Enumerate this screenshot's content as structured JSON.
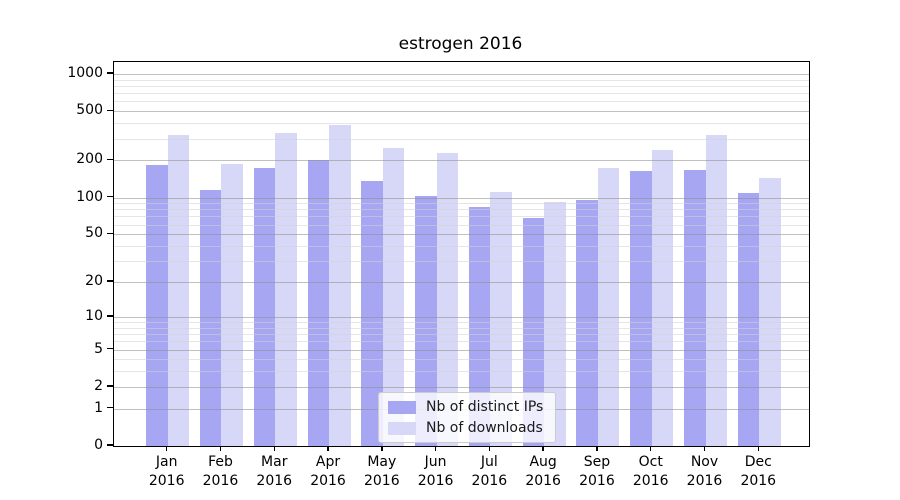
{
  "title": "estrogen 2016",
  "chart_data": {
    "type": "bar",
    "title": "estrogen 2016",
    "categories": [
      "Jan 2016",
      "Feb 2016",
      "Mar 2016",
      "Apr 2016",
      "May 2016",
      "Jun 2016",
      "Jul 2016",
      "Aug 2016",
      "Sep 2016",
      "Oct 2016",
      "Nov 2016",
      "Dec 2016"
    ],
    "month_labels": [
      "Jan",
      "Feb",
      "Mar",
      "Apr",
      "May",
      "Jun",
      "Jul",
      "Aug",
      "Sep",
      "Oct",
      "Nov",
      "Dec"
    ],
    "year_label": "2016",
    "series": [
      {
        "name": "Nb of distinct IPs",
        "color": "#a6a6f2",
        "values": [
          184,
          116,
          174,
          200,
          136,
          102,
          84,
          68,
          95,
          165,
          166,
          109
        ]
      },
      {
        "name": "Nb of downloads",
        "color": "#d7d7f7",
        "values": [
          320,
          188,
          335,
          385,
          252,
          230,
          110,
          92,
          174,
          245,
          322,
          143
        ]
      }
    ],
    "yscale": "log1p",
    "ylim": [
      0,
      1250
    ],
    "major_yticks": [
      0,
      1,
      2,
      5,
      10,
      20,
      50,
      100,
      200,
      500,
      1000
    ],
    "minor_yticks": [
      3,
      4,
      6,
      7,
      8,
      9,
      30,
      40,
      60,
      70,
      80,
      90,
      300,
      400,
      600,
      700,
      800,
      900
    ],
    "grid": true,
    "legend_position": "lower center"
  },
  "legend": {
    "items": [
      {
        "label": "Nb of distinct IPs",
        "color": "#a6a6f2"
      },
      {
        "label": "Nb of downloads",
        "color": "#d7d7f7"
      }
    ]
  },
  "colors": {
    "background": "#ffffff",
    "spine": "#000000",
    "major_grid": "#8c8c8c",
    "minor_grid": "#d2d2d2",
    "text": "#000000",
    "legend_border": "#cccccc"
  }
}
